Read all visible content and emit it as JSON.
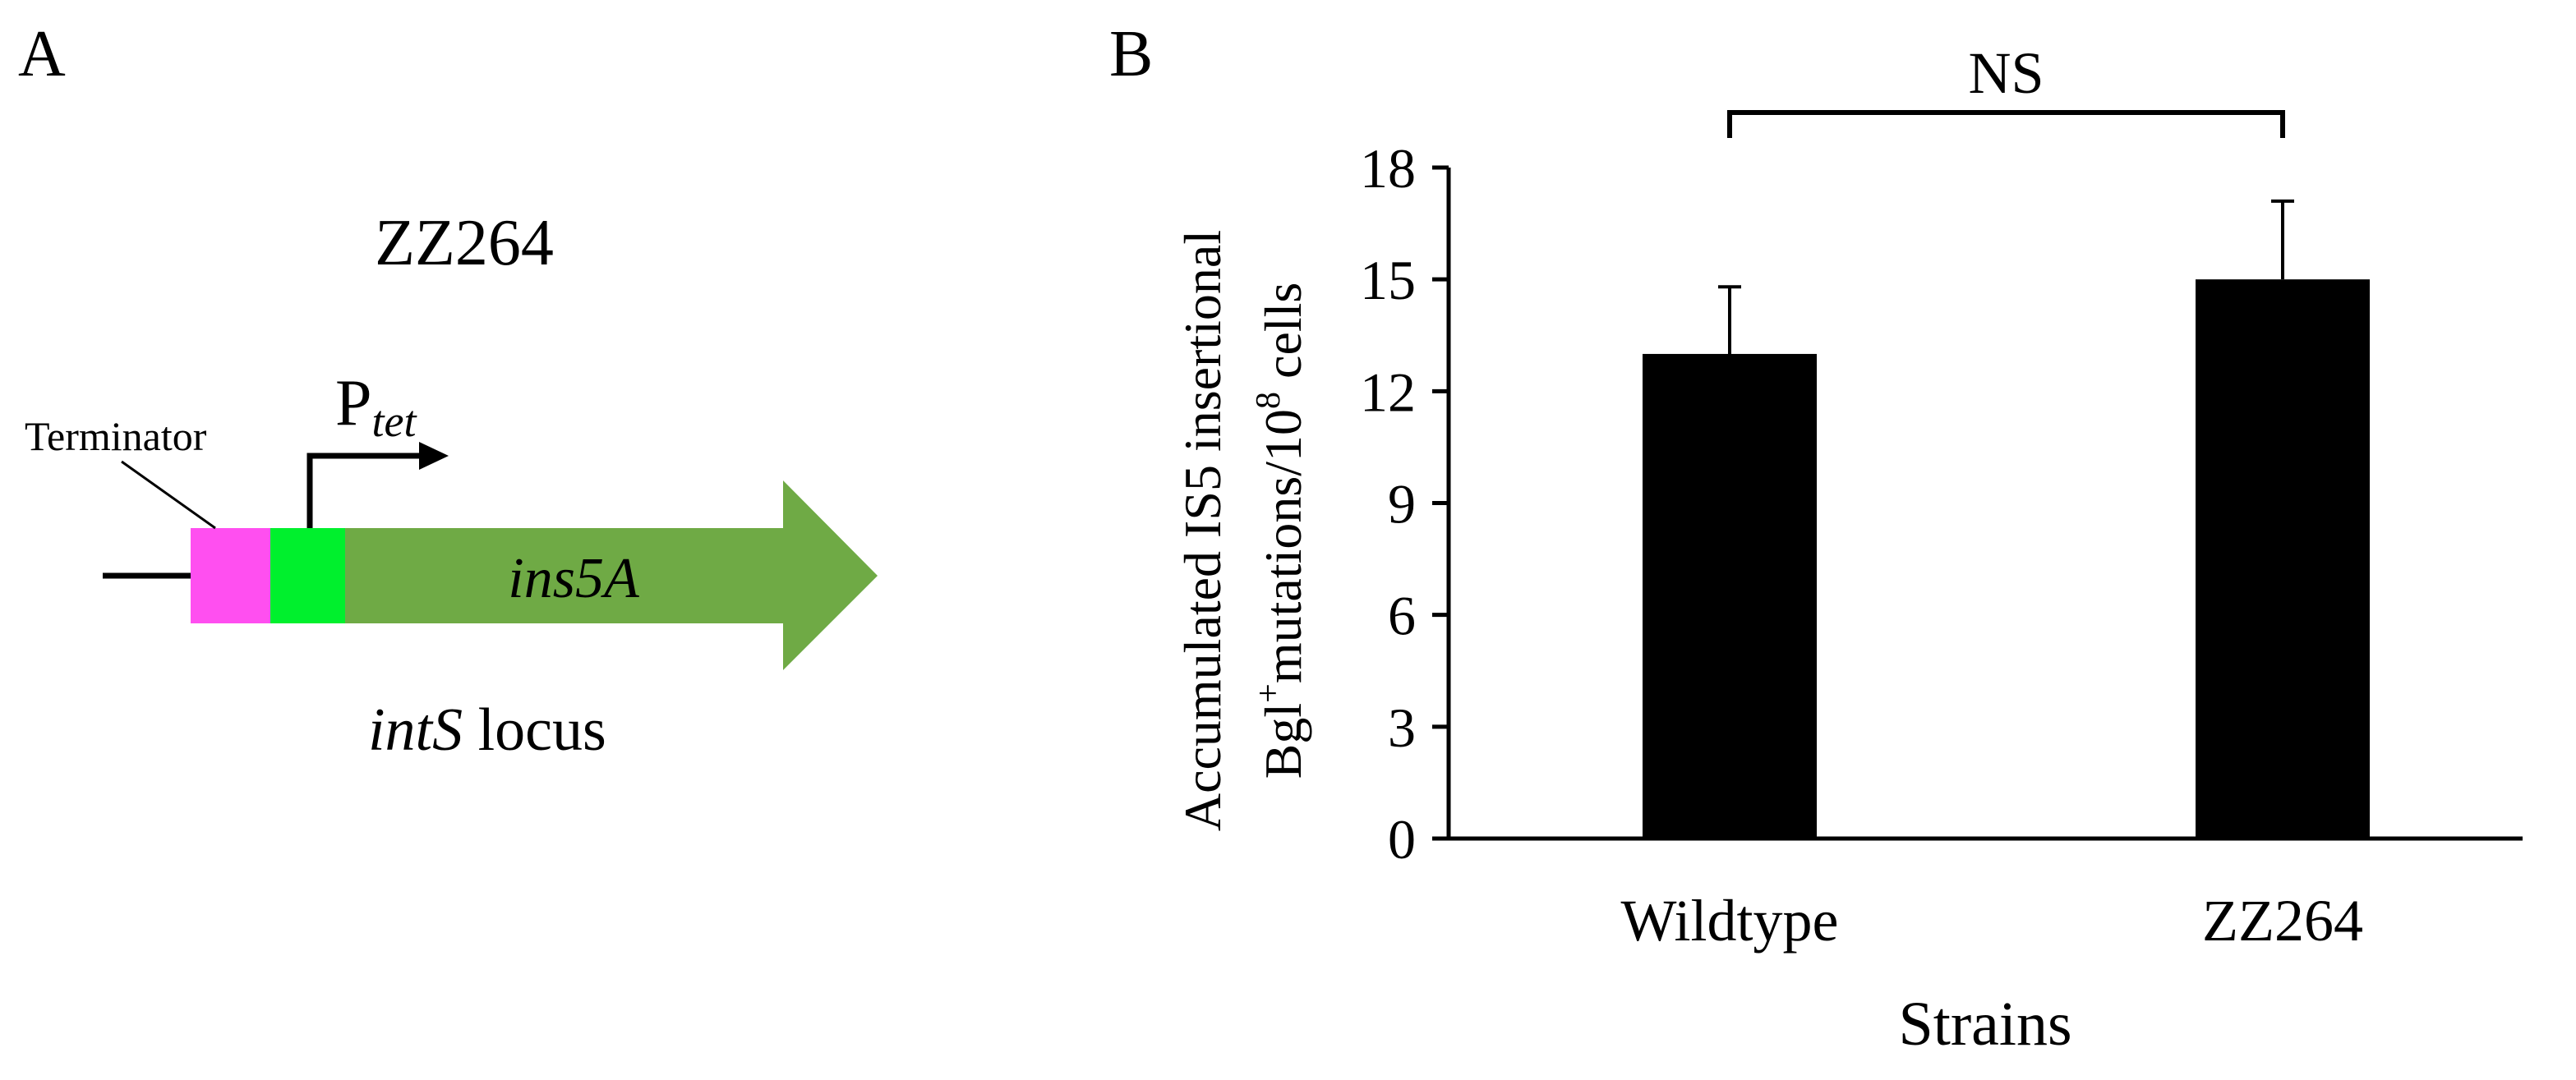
{
  "panel_a": {
    "label": "A",
    "strain_name": "ZZ264",
    "terminator_label": "Terminator",
    "promoter_label_main": "P",
    "promoter_label_sub": "tet",
    "gene_label": "ins5A",
    "locus_label_italic": "intS",
    "locus_label_rest": " locus",
    "colors": {
      "terminator": "#FF4FF0",
      "promoter": "#00F02D",
      "gene": "#6FAA45"
    }
  },
  "panel_b": {
    "label": "B",
    "significance_label": "NS",
    "ylabel_line1": "Accumulated IS5 insertional",
    "ylabel_line2_pre": "Bgl",
    "ylabel_line2_sup1": "+",
    "ylabel_line2_mid": "mutations/10",
    "ylabel_line2_sup2": "8",
    "ylabel_line2_post": " cells",
    "bar_color": "#000000"
  },
  "chart_data": {
    "type": "bar",
    "categories": [
      "Wildtype",
      "ZZ264"
    ],
    "values": [
      13.0,
      15.0
    ],
    "error_bars": [
      1.8,
      2.1
    ],
    "xlabel": "Strains",
    "ylim": [
      0,
      18
    ],
    "yticks": [
      0,
      3,
      6,
      9,
      12,
      15,
      18
    ],
    "grid": false,
    "legend": "none",
    "annotations": [
      {
        "text": "NS",
        "between": [
          "Wildtype",
          "ZZ264"
        ]
      }
    ]
  }
}
